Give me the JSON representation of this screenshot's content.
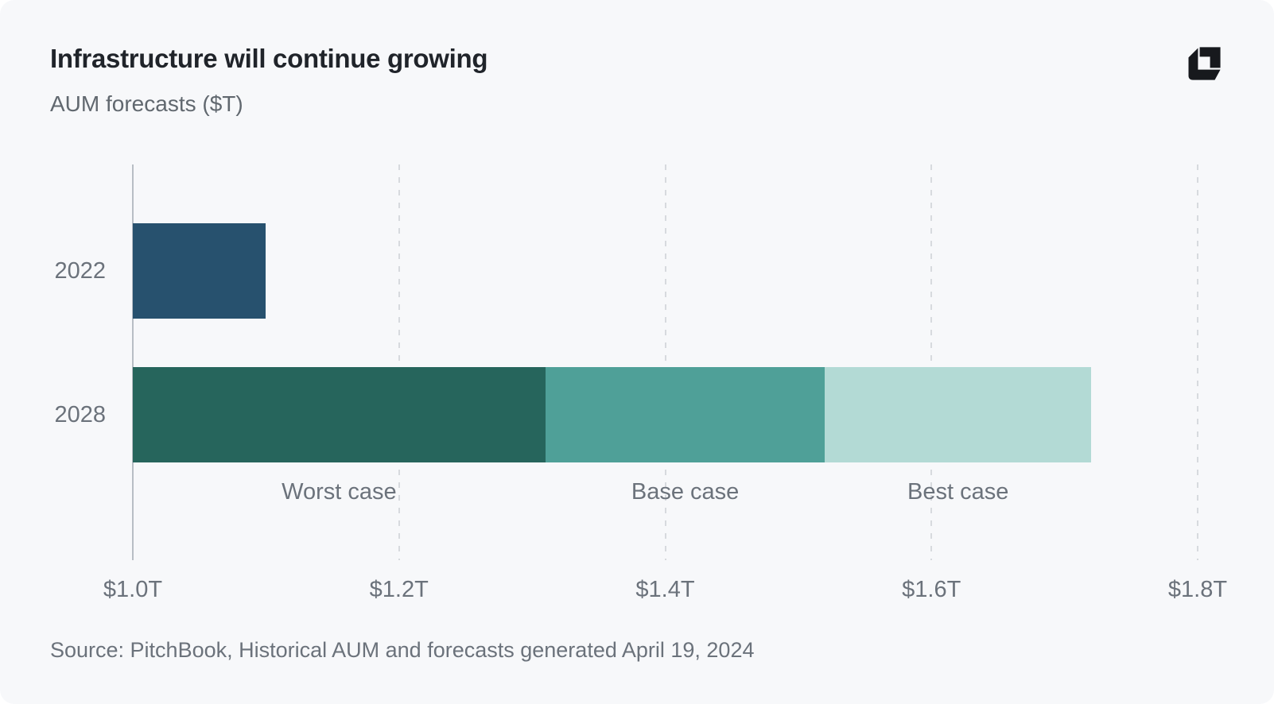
{
  "colors": {
    "page_background": "#FFFFFF",
    "card_background": "#F7F8FA",
    "title_text": "#20242A",
    "muted_text": "#6B727B",
    "logo": "#17191D"
  },
  "header": {
    "logo_icon": "brand-logo-mark"
  },
  "chart_data": {
    "type": "bar",
    "orientation": "horizontal",
    "stacked": true,
    "title": "Infrastructure will continue growing",
    "subtitle": "AUM forecasts ($T)",
    "unit": "$T",
    "xlim": [
      1.0,
      1.8
    ],
    "baseline": 1.0,
    "grid": {
      "style": "dashed-vertical",
      "axis_color": "#B8BEC5",
      "line_color": "#D7DADE"
    },
    "x_ticks": [
      {
        "value": 1.0,
        "label": "$1.0T"
      },
      {
        "value": 1.2,
        "label": "$1.2T"
      },
      {
        "value": 1.4,
        "label": "$1.4T"
      },
      {
        "value": 1.6,
        "label": "$1.6T"
      },
      {
        "value": 1.8,
        "label": "$1.8T"
      }
    ],
    "rows": [
      {
        "label": "2022",
        "segments": [
          {
            "start": 1.0,
            "end": 1.1,
            "color": "#27516E"
          }
        ]
      },
      {
        "label": "2028",
        "segments": [
          {
            "name": "Worst case",
            "start": 1.0,
            "end": 1.31,
            "color": "#26655C"
          },
          {
            "name": "Base case",
            "start": 1.31,
            "end": 1.52,
            "color": "#4FA098"
          },
          {
            "name": "Best case",
            "start": 1.52,
            "end": 1.72,
            "color": "#B3DAD5"
          }
        ]
      }
    ]
  },
  "footer": {
    "source": "Source: PitchBook, Historical AUM and forecasts generated April 19, 2024"
  }
}
